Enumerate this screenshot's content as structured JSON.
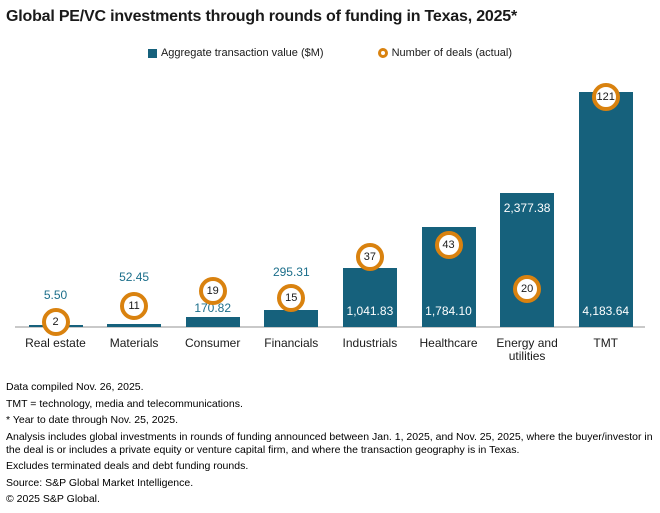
{
  "title": "Global PE/VC investments through rounds of funding in Texas, 2025*",
  "legend": {
    "bar_series_label": "Aggregate transaction value ($M)",
    "deals_series_label": "Number of deals (actual)"
  },
  "colors": {
    "bar": "#16617C",
    "deal_ring": "#D9820F",
    "value_label": "#1B6E8A",
    "axis_line": "#C9C9C9",
    "text": "#1A1A1A"
  },
  "chart_data": {
    "type": "bar",
    "title": "Global PE/VC investments through rounds of funding in Texas, 2025*",
    "categories": [
      "Real estate",
      "Materials",
      "Consumer",
      "Financials",
      "Industrials",
      "Healthcare",
      "Energy and utilities",
      "TMT"
    ],
    "series": [
      {
        "name": "Aggregate transaction value ($M)",
        "values": [
          5.5,
          52.45,
          170.82,
          295.31,
          1041.83,
          1784.1,
          2377.38,
          4183.64
        ],
        "labels": [
          "5.50",
          "52.45",
          "170.82",
          "295.31",
          "1,041.83",
          "1,784.10",
          "2,377.38",
          "4,183.64"
        ]
      },
      {
        "name": "Number of deals (actual)",
        "values": [
          2,
          11,
          19,
          15,
          37,
          43,
          20,
          121
        ],
        "labels": [
          "2",
          "11",
          "19",
          "15",
          "37",
          "43",
          "20",
          "121"
        ]
      }
    ],
    "value_label_position": [
      "above",
      "above",
      "above",
      "above",
      "inside-bottom",
      "inside-bottom",
      "inside-top",
      "inside-bottom"
    ],
    "xlabel": "",
    "ylabel": "",
    "ylim": [
      0,
      4500
    ],
    "grid": false,
    "legend_position": "top-center",
    "deal_marker": "orange ring circle with white fill, plotted on secondary count scale (max ~125 aligns with primary max)"
  },
  "footnotes": [
    "Data compiled Nov. 26, 2025.",
    "TMT = technology, media and telecommunications.",
    "* Year to date through Nov. 25, 2025.",
    "Analysis includes global investments in rounds of funding announced between Jan. 1, 2025, and Nov. 25, 2025, where the buyer/investor in the deal is or includes a private equity or venture capital firm, and where the transaction geography is in Texas.",
    "Excludes terminated deals and debt funding rounds.",
    "Source: S&P Global Market Intelligence.",
    "© 2025 S&P Global."
  ]
}
